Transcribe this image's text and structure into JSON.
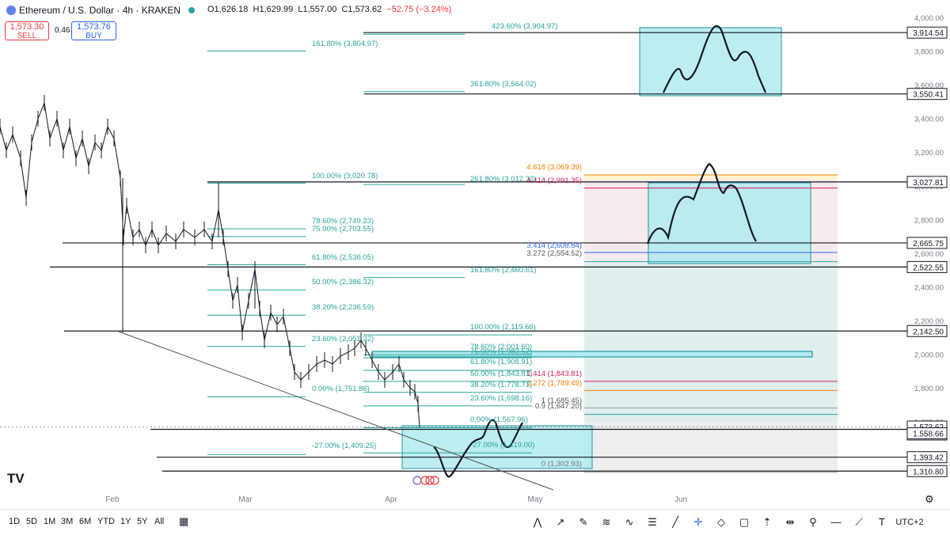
{
  "header": {
    "symbol": "Ethereum / U.S. Dollar · 4h · KRAKEN",
    "open": "O1,626.18",
    "high": "H1,629.99",
    "low": "L1,557.00",
    "close": "C1,573.62",
    "change": "−52.75 (−3.24%)",
    "sell_price": "1,573.30",
    "sell_label": "SELL",
    "spread": "0.46",
    "buy_price": "1,573.76",
    "buy_label": "BUY"
  },
  "price_axis": {
    "ticks": [
      "4,000.00",
      "3,800.00",
      "3,600.00",
      "3,400.00",
      "3,200.00",
      "3,000.00",
      "2,800.00",
      "2,600.00",
      "2,400.00",
      "2,200.00",
      "2,000.00",
      "1,800.00",
      "1,600.00"
    ],
    "tick_values": [
      4000,
      3800,
      3600,
      3400,
      3200,
      3000,
      2800,
      2600,
      2400,
      2200,
      2000,
      1800,
      1600
    ],
    "labels": [
      "3,914.54",
      "3,550.41",
      "3,027.81",
      "2,665.75",
      "2,522.55",
      "2,142.50",
      "1,573.62",
      "57:45",
      "1,558.66",
      "1,393.42",
      "1,310.80"
    ]
  },
  "time_axis": {
    "labels": [
      "Feb",
      "Mar",
      "Apr",
      "May",
      "Jun"
    ]
  },
  "fib_labels": [
    "423.60% (3,904.97)",
    "161.80% (3,804.97)",
    "361.80% (3,564.02)",
    "100.00% (3,020.78)",
    "261.80% (3,012.32)",
    "78.60% (2,749.23)",
    "75.00% (2,703.55)",
    "61.80% (2,536.05)",
    "161.80% (2,460.61)",
    "50.00% (2,386.32)",
    "38.20% (2,236.59)",
    "100.00% (2,119.66)",
    "23.60% (2,051.32)",
    "78.60% (2,001.60)",
    "75.00% (1,983.52)",
    "61.80% (1,908.91)",
    "50.00% (1,843.81)",
    "38.20% (1,778.71)",
    "0.00% (1,751.86)",
    "23.60% (1,698.16)",
    "0.00% (1,567.96)",
    "-27.00% (1,409.25)",
    "-27.00% (1,419.00)",
    "0 (1,302.93)",
    "4.618 (3,069.39)",
    "4.414 (2,991.35)",
    "3.414 (2,608.84)",
    "3.272 (2,554.52)",
    "1.414 (1,843.81)",
    "1.272 (1,789.49)",
    "1 (1,685.45)",
    "0.9 (1,647.20)"
  ],
  "timeframes": [
    "1D",
    "5D",
    "1M",
    "3M",
    "6M",
    "YTD",
    "1Y",
    "5Y",
    "All"
  ],
  "drawing_tools": [
    "pattern-icon",
    "arrow-icon",
    "brush-icon",
    "parallel-channel-icon",
    "elliott-wave-icon",
    "fib-icon",
    "trendline-icon",
    "crosshair-icon",
    "shape-icon",
    "rectangle-icon",
    "long-position-icon",
    "date-range-icon",
    "pin-icon",
    "horizontal-line-icon",
    "ray-icon",
    "text-icon",
    "timezone-label"
  ],
  "timezone": "UTC+2",
  "watermark": "TV",
  "colors": {
    "accent": "#2962ff",
    "sell": "#f23645",
    "fib": "#26a69a",
    "box": "#b2ebf2",
    "box_border": "#00838f",
    "candle": "#131722",
    "extension_red": "#d81b60",
    "extension_orange": "#f57c00"
  }
}
